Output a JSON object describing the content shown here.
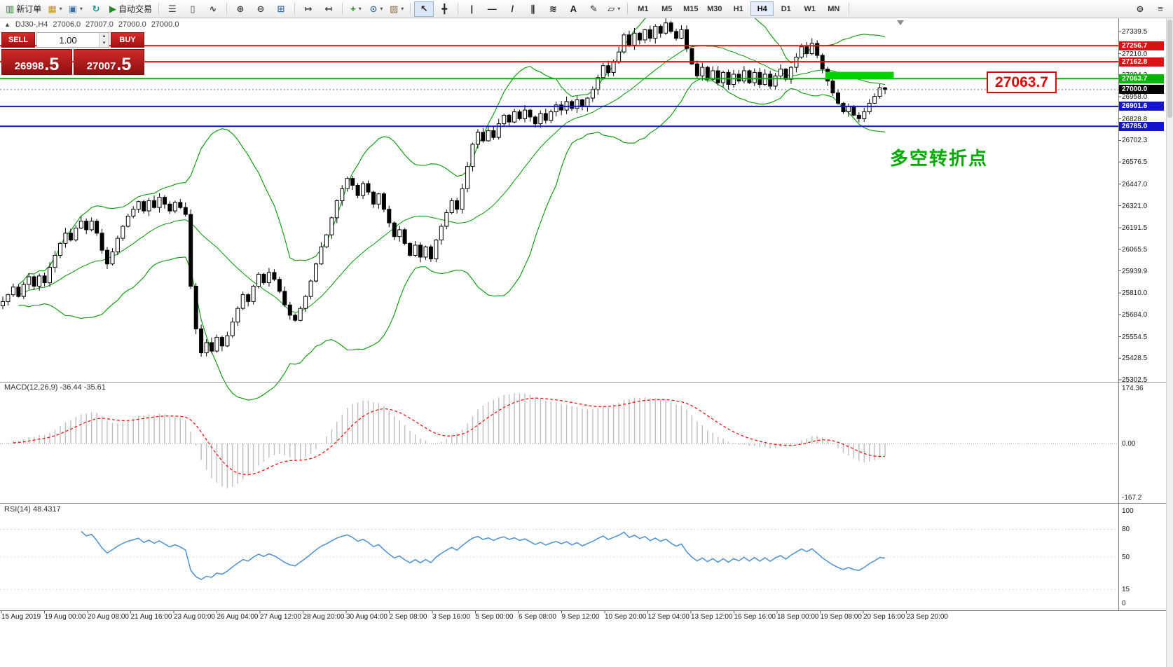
{
  "toolbar": {
    "groups": [
      [
        {
          "name": "new-order-button",
          "glyph": "▥",
          "color": "#1f8a1f",
          "label": "新订单"
        },
        {
          "name": "chart-profile-button",
          "glyph": "▦",
          "color": "#c89600",
          "dropdown": true
        },
        {
          "name": "new-chart-button",
          "glyph": "▣",
          "color": "#3a6ea5",
          "dropdown": true
        },
        {
          "name": "refresh-button",
          "glyph": "↻",
          "color": "#18918f"
        },
        {
          "name": "auto-trading-button",
          "glyph": "▶",
          "color": "#1f8a1f",
          "label": "自动交易"
        }
      ],
      [
        {
          "name": "bar-chart-button",
          "glyph": "☰",
          "color": "#444444"
        },
        {
          "name": "candlestick-chart-button",
          "glyph": "▯",
          "color": "#444444"
        },
        {
          "name": "line-chart-button",
          "glyph": "∿",
          "color": "#444444"
        }
      ],
      [
        {
          "name": "zoom-in-button",
          "glyph": "⊕",
          "color": "#444444"
        },
        {
          "name": "zoom-out-button",
          "glyph": "⊖",
          "color": "#444444"
        },
        {
          "name": "tile-windows-button",
          "glyph": "⊞",
          "color": "#3a6ea5"
        }
      ],
      [
        {
          "name": "auto-scroll-button",
          "glyph": "↦",
          "color": "#444444"
        },
        {
          "name": "chart-shift-button",
          "glyph": "↤",
          "color": "#444444"
        }
      ],
      [
        {
          "name": "indicators-button",
          "glyph": "+",
          "color": "#1f8a1f",
          "dropdown": true
        },
        {
          "name": "periods-button",
          "glyph": "⊙",
          "color": "#3a6ea5",
          "dropdown": true
        },
        {
          "name": "templates-button",
          "glyph": "▨",
          "color": "#8a6d3b",
          "dropdown": true
        }
      ],
      [
        {
          "name": "cursor-button",
          "glyph": "↖",
          "color": "#222222",
          "active": true
        },
        {
          "name": "crosshair-button",
          "glyph": "╋",
          "color": "#222222"
        }
      ],
      [
        {
          "name": "vertical-line-button",
          "glyph": "|",
          "color": "#222222"
        },
        {
          "name": "horizontal-line-button",
          "glyph": "—",
          "color": "#222222"
        },
        {
          "name": "trendline-button",
          "glyph": "/",
          "color": "#222222"
        },
        {
          "name": "channel-button",
          "glyph": "∥",
          "color": "#222222"
        },
        {
          "name": "fibonacci-button",
          "glyph": "≋",
          "color": "#222222"
        },
        {
          "name": "text-button",
          "glyph": "A",
          "color": "#222222"
        },
        {
          "name": "text-label-button",
          "glyph": "✎",
          "color": "#222222"
        },
        {
          "name": "shapes-button",
          "glyph": "▱",
          "color": "#222222",
          "dropdown": true
        }
      ]
    ],
    "timeframes": [
      "M1",
      "M5",
      "M15",
      "M30",
      "H1",
      "H4",
      "D1",
      "W1",
      "MN"
    ],
    "active_timeframe": "H4",
    "right_icons": [
      {
        "name": "quick-search-icon",
        "glyph": "⊚",
        "color": "#444444"
      },
      {
        "name": "panel-toggle-icon",
        "glyph": "≡",
        "color": "#444444"
      }
    ]
  },
  "legend": {
    "collapse_icon": "▲",
    "symbol_period": "DJ30-,H4",
    "open": "27006.0",
    "high": "27007.0",
    "low": "27000.0",
    "close": "27000.0"
  },
  "trade_panel": {
    "sell_label": "SELL",
    "buy_label": "BUY",
    "volume": "1.00",
    "sell_price": "26998",
    "sell_pips": ".5",
    "buy_price": "27007",
    "buy_pips": ".5"
  },
  "levels": [
    {
      "label": "27256.7",
      "price": 27256.7,
      "color": "#dd1111"
    },
    {
      "label": "27162.8",
      "price": 27162.8,
      "color": "#dd1111"
    },
    {
      "label": "27063.7",
      "price": 27063.7,
      "color": "#00b400"
    },
    {
      "label": "26901.6",
      "price": 26901.6,
      "color": "#1414cc"
    },
    {
      "label": "26785.0",
      "price": 26785.0,
      "color": "#1414cc"
    }
  ],
  "current_price": {
    "label": "27000.0",
    "price": 27000.0,
    "bg": "#000000"
  },
  "y_axis_ticks": [
    27339.5,
    27210.0,
    27084.2,
    26958.0,
    26828.8,
    26702.3,
    26576.5,
    26447.0,
    26321.0,
    26191.5,
    26065.5,
    25939.9,
    25810.0,
    25684.0,
    25554.5,
    25428.5,
    25302.5
  ],
  "x_axis_labels": [
    "15 Aug 2019",
    "19 Aug 00:00",
    "20 Aug 08:00",
    "21 Aug 16:00",
    "23 Aug 00:00",
    "26 Aug 04:00",
    "27 Aug 12:00",
    "28 Aug 20:00",
    "30 Aug 04:00",
    "2 Sep 08:00",
    "3 Sep 16:00",
    "5 Sep 00:00",
    "6 Sep 08:00",
    "9 Sep 12:00",
    "10 Sep 20:00",
    "12 Sep 04:00",
    "13 Sep 12:00",
    "16 Sep 16:00",
    "18 Sep 00:00",
    "19 Sep 08:00",
    "20 Sep 16:00",
    "23 Sep 20:00"
  ],
  "macd_pane": {
    "label": "MACD(12,26,9) -36.44 -35.61",
    "axis_labels": [
      "174.36",
      "0.00",
      "-167.2"
    ]
  },
  "rsi_pane": {
    "label": "RSI(14) 48.4317",
    "axis_labels": [
      "100",
      "80",
      "50",
      "15",
      "0"
    ]
  },
  "annotations": {
    "turning_point": "多空转折点",
    "price_callout": "27063.7",
    "highlight_zone": {
      "bar_from": 158,
      "bar_to": 170,
      "price_top": 27104,
      "price_bottom": 27062
    }
  },
  "colors": {
    "bollinger": "#009900",
    "macd_hist": "#bdbdbd",
    "macd_signal": "#ff0000",
    "rsi": "#4a90d2",
    "bull": "#ffffff",
    "bear": "#000000"
  },
  "chart_data": {
    "type": "candlestick",
    "symbol": "DJ30-",
    "timeframe": "H4",
    "y_range": [
      25302.5,
      27339.5
    ],
    "indicators": [
      "Bollinger Bands(20,2)",
      "MACD(12,26,9)",
      "RSI(14)"
    ],
    "closes": [
      25760,
      25800,
      25845,
      25790,
      25860,
      25905,
      25850,
      25910,
      25870,
      25960,
      26030,
      26100,
      26160,
      26120,
      26190,
      26230,
      26180,
      26230,
      26160,
      26060,
      25980,
      26050,
      26130,
      26200,
      26260,
      26300,
      26345,
      26290,
      26350,
      26310,
      26370,
      26330,
      26290,
      26340,
      26310,
      26270,
      25850,
      25600,
      25460,
      25520,
      25470,
      25550,
      25500,
      25560,
      25640,
      25720,
      25800,
      25760,
      25850,
      25920,
      25870,
      25930,
      25890,
      25820,
      25740,
      25680,
      25650,
      25720,
      25790,
      25880,
      25980,
      26080,
      26150,
      26250,
      26350,
      26420,
      26480,
      26440,
      26380,
      26450,
      26400,
      26330,
      26390,
      26300,
      26220,
      26140,
      26180,
      26100,
      26030,
      26090,
      26020,
      26080,
      26010,
      26120,
      26200,
      26280,
      26350,
      26300,
      26420,
      26550,
      26680,
      26750,
      26700,
      26760,
      26720,
      26800,
      26850,
      26810,
      26870,
      26830,
      26880,
      26840,
      26800,
      26860,
      26820,
      26870,
      26910,
      26880,
      26930,
      26890,
      26940,
      26900,
      26950,
      27000,
      27070,
      27140,
      27100,
      27160,
      27220,
      27320,
      27260,
      27330,
      27290,
      27350,
      27300,
      27370,
      27330,
      27390,
      27340,
      27300,
      27350,
      27240,
      27150,
      27080,
      27130,
      27060,
      27110,
      27040,
      27100,
      27030,
      27090,
      27050,
      27110,
      27040,
      27100,
      27030,
      27090,
      27020,
      27080,
      27120,
      27060,
      27130,
      27190,
      27250,
      27210,
      27270,
      27200,
      27120,
      27050,
      26980,
      26920,
      26870,
      26900,
      26850,
      26830,
      26870,
      26920,
      26960,
      27010,
      27000
    ]
  }
}
